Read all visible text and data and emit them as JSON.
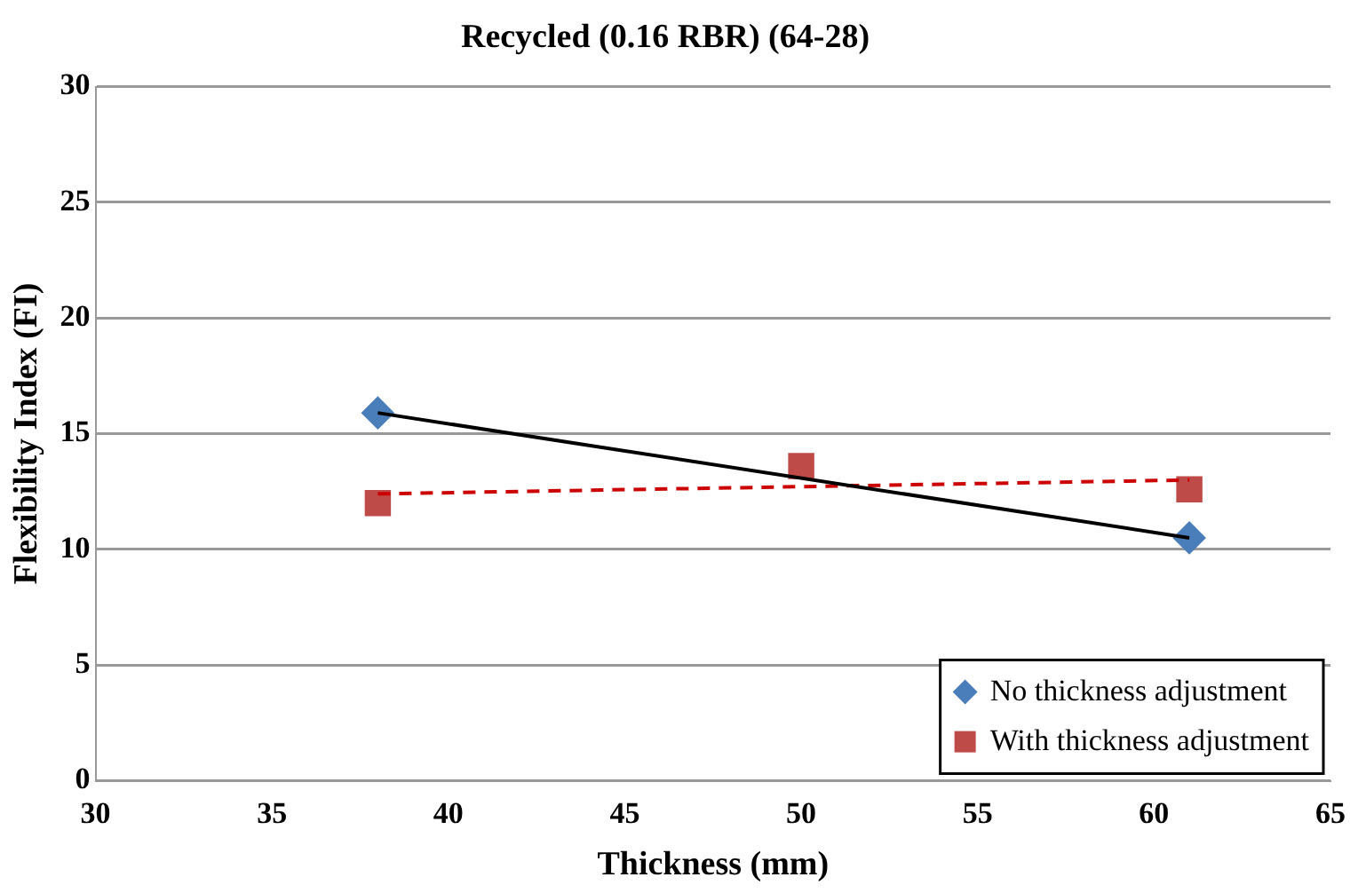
{
  "chart_data": {
    "type": "scatter",
    "title": "Recycled (0.16 RBR) (64-28)",
    "xlabel": "Thickness (mm)",
    "ylabel": "Flexibility Index (FI)",
    "series": [
      {
        "name": "No thickness adjustment",
        "color": "#4a7ebb",
        "x": [
          38,
          61
        ],
        "values": [
          15.9,
          10.5
        ],
        "marker": "diamond"
      },
      {
        "name": "With thickness adjustment",
        "color": "#be4b48",
        "x": [
          38,
          50,
          61
        ],
        "values": [
          12.0,
          13.6,
          12.6
        ],
        "marker": "square"
      },
      {
        "type": "line",
        "color": "#000000",
        "x": [
          38,
          61
        ],
        "values": [
          15.9,
          10.5
        ],
        "marker": "none",
        "line_style": "solid"
      },
      {
        "type": "line",
        "color": "#cc0000",
        "x": [
          38,
          61
        ],
        "values": [
          12.4,
          13.0
        ],
        "marker": "none",
        "line_style": "dashed"
      }
    ],
    "xlim": [
      30,
      65
    ],
    "xticks": [
      30,
      35,
      40,
      45,
      50,
      55,
      60,
      65
    ],
    "ylim": [
      0,
      30
    ],
    "yticks": [
      0,
      5,
      10,
      15,
      20,
      25,
      30
    ],
    "grid": "y",
    "legend": "bottom right"
  }
}
